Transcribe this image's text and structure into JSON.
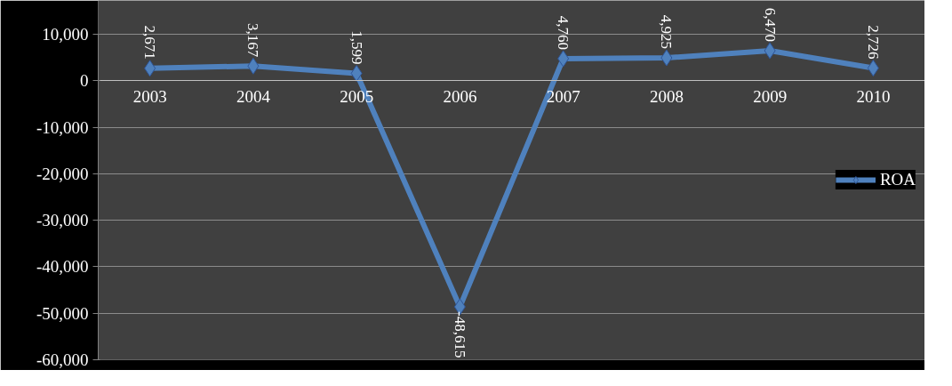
{
  "chart_data": {
    "type": "line",
    "categories": [
      "2003",
      "2004",
      "2005",
      "2006",
      "2007",
      "2008",
      "2009",
      "2010"
    ],
    "series": [
      {
        "name": "ROA",
        "color": "#4f81bd",
        "values": [
          2671,
          3167,
          1599,
          -48615,
          4760,
          4925,
          6470,
          2726
        ],
        "value_labels": [
          "2,671",
          "3,167",
          "1,599",
          "-48,615",
          "4,760",
          "4,925",
          "6,470",
          "2,726"
        ]
      }
    ],
    "ylim": [
      -60000,
      10000
    ],
    "yticks": [
      {
        "value": -60000,
        "label": "-60,000"
      },
      {
        "value": -50000,
        "label": "-50,000"
      },
      {
        "value": -40000,
        "label": "-40,000"
      },
      {
        "value": -30000,
        "label": "-30,000"
      },
      {
        "value": -20000,
        "label": "-20,000"
      },
      {
        "value": -10000,
        "label": "-10,000"
      },
      0,
      {
        "value": 10000,
        "label": "10,000"
      }
    ],
    "grid": "y",
    "legend": "right",
    "marker": "diamond",
    "line_style": "solid"
  }
}
